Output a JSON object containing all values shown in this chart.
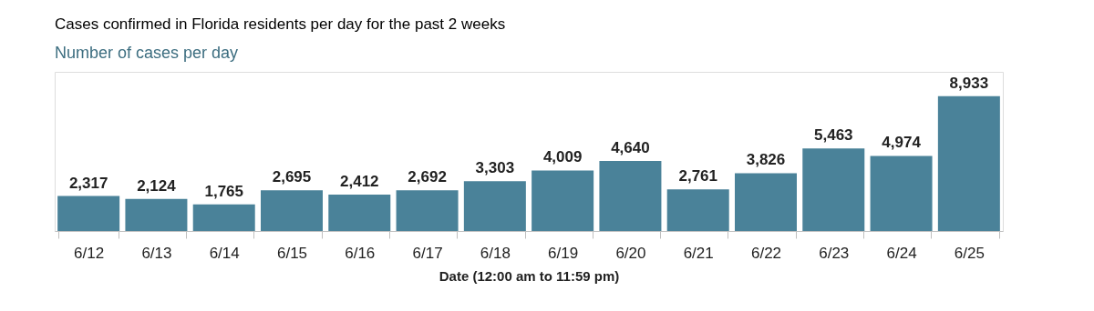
{
  "chart_data": {
    "type": "bar",
    "title": "Cases confirmed in Florida residents per day for the past 2 weeks",
    "subtitle": "Number of cases per day",
    "xlabel": "Date (12:00 am to 11:59 pm)",
    "categories": [
      "6/12",
      "6/13",
      "6/14",
      "6/15",
      "6/16",
      "6/17",
      "6/18",
      "6/19",
      "6/20",
      "6/21",
      "6/22",
      "6/23",
      "6/24",
      "6/25"
    ],
    "values": [
      2317,
      2124,
      1765,
      2695,
      2412,
      2692,
      3303,
      4009,
      4640,
      2761,
      3826,
      5463,
      4974,
      8933
    ],
    "value_labels": [
      "2,317",
      "2,124",
      "1,765",
      "2,695",
      "2,412",
      "2,692",
      "3,303",
      "4,009",
      "4,640",
      "2,761",
      "3,826",
      "5,463",
      "4,974",
      "8,933"
    ],
    "color": "#4a8299"
  }
}
